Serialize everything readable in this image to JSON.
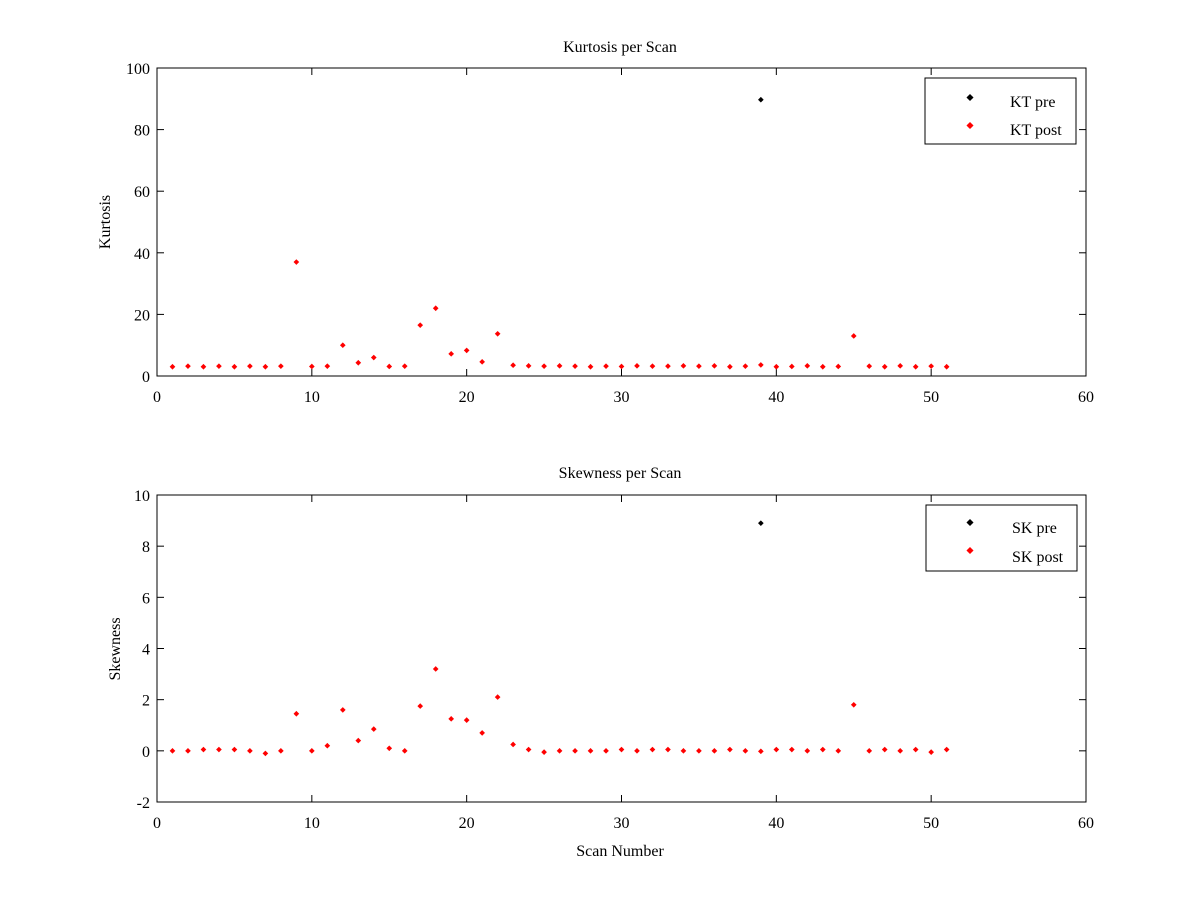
{
  "chart_data": [
    {
      "type": "scatter",
      "title": "Kurtosis per Scan",
      "xlabel": "",
      "ylabel": "Kurtosis",
      "xlim": [
        0,
        60
      ],
      "ylim": [
        0,
        100
      ],
      "xticks": [
        0,
        10,
        20,
        30,
        40,
        50,
        60
      ],
      "yticks": [
        0,
        20,
        40,
        60,
        80,
        100
      ],
      "grid": false,
      "legend_position": "top-right",
      "series": [
        {
          "name": "KT pre",
          "color": "#000000",
          "x": [
            39
          ],
          "y": [
            89.7
          ]
        },
        {
          "name": "KT post",
          "color": "#ff0000",
          "x": [
            1,
            2,
            3,
            4,
            5,
            6,
            7,
            8,
            9,
            10,
            11,
            12,
            13,
            14,
            15,
            16,
            17,
            18,
            19,
            20,
            21,
            22,
            23,
            24,
            25,
            26,
            27,
            28,
            29,
            30,
            31,
            32,
            33,
            34,
            35,
            36,
            37,
            38,
            39,
            40,
            41,
            42,
            43,
            44,
            45,
            46,
            47,
            48,
            49,
            50,
            51
          ],
          "y": [
            3.0,
            3.2,
            3.0,
            3.2,
            3.0,
            3.2,
            3.0,
            3.2,
            37.0,
            3.1,
            3.2,
            10.0,
            4.3,
            6.0,
            3.1,
            3.2,
            16.5,
            22.0,
            7.2,
            8.3,
            4.6,
            13.7,
            3.5,
            3.3,
            3.2,
            3.3,
            3.2,
            3.0,
            3.2,
            3.1,
            3.3,
            3.2,
            3.2,
            3.3,
            3.2,
            3.3,
            3.0,
            3.2,
            3.6,
            3.0,
            3.1,
            3.3,
            3.0,
            3.1,
            13.0,
            3.2,
            3.0,
            3.3,
            3.0,
            3.2,
            3.0
          ]
        }
      ]
    },
    {
      "type": "scatter",
      "title": "Skewness per Scan",
      "xlabel": "Scan Number",
      "ylabel": "Skewness",
      "xlim": [
        0,
        60
      ],
      "ylim": [
        -2,
        10
      ],
      "xticks": [
        0,
        10,
        20,
        30,
        40,
        50,
        60
      ],
      "yticks": [
        -2,
        0,
        2,
        4,
        6,
        8,
        10
      ],
      "grid": false,
      "legend_position": "top-right",
      "series": [
        {
          "name": "SK pre",
          "color": "#000000",
          "x": [
            39
          ],
          "y": [
            8.9
          ]
        },
        {
          "name": "SK post",
          "color": "#ff0000",
          "x": [
            1,
            2,
            3,
            4,
            5,
            6,
            7,
            8,
            9,
            10,
            11,
            12,
            13,
            14,
            15,
            16,
            17,
            18,
            19,
            20,
            21,
            22,
            23,
            24,
            25,
            26,
            27,
            28,
            29,
            30,
            31,
            32,
            33,
            34,
            35,
            36,
            37,
            38,
            39,
            40,
            41,
            42,
            43,
            44,
            45,
            46,
            47,
            48,
            49,
            50,
            51
          ],
          "y": [
            0.0,
            0.0,
            0.05,
            0.05,
            0.05,
            0.0,
            -0.1,
            0.0,
            1.45,
            0.0,
            0.2,
            1.6,
            0.4,
            0.85,
            0.1,
            0.0,
            1.75,
            3.2,
            1.25,
            1.2,
            0.7,
            2.1,
            0.25,
            0.05,
            -0.05,
            0.0,
            0.0,
            0.0,
            0.0,
            0.05,
            0.0,
            0.05,
            0.05,
            0.0,
            0.0,
            0.0,
            0.05,
            0.0,
            -0.02,
            0.05,
            0.05,
            0.0,
            0.05,
            0.0,
            1.8,
            0.0,
            0.05,
            0.0,
            0.05,
            -0.05,
            0.05
          ]
        }
      ]
    }
  ]
}
